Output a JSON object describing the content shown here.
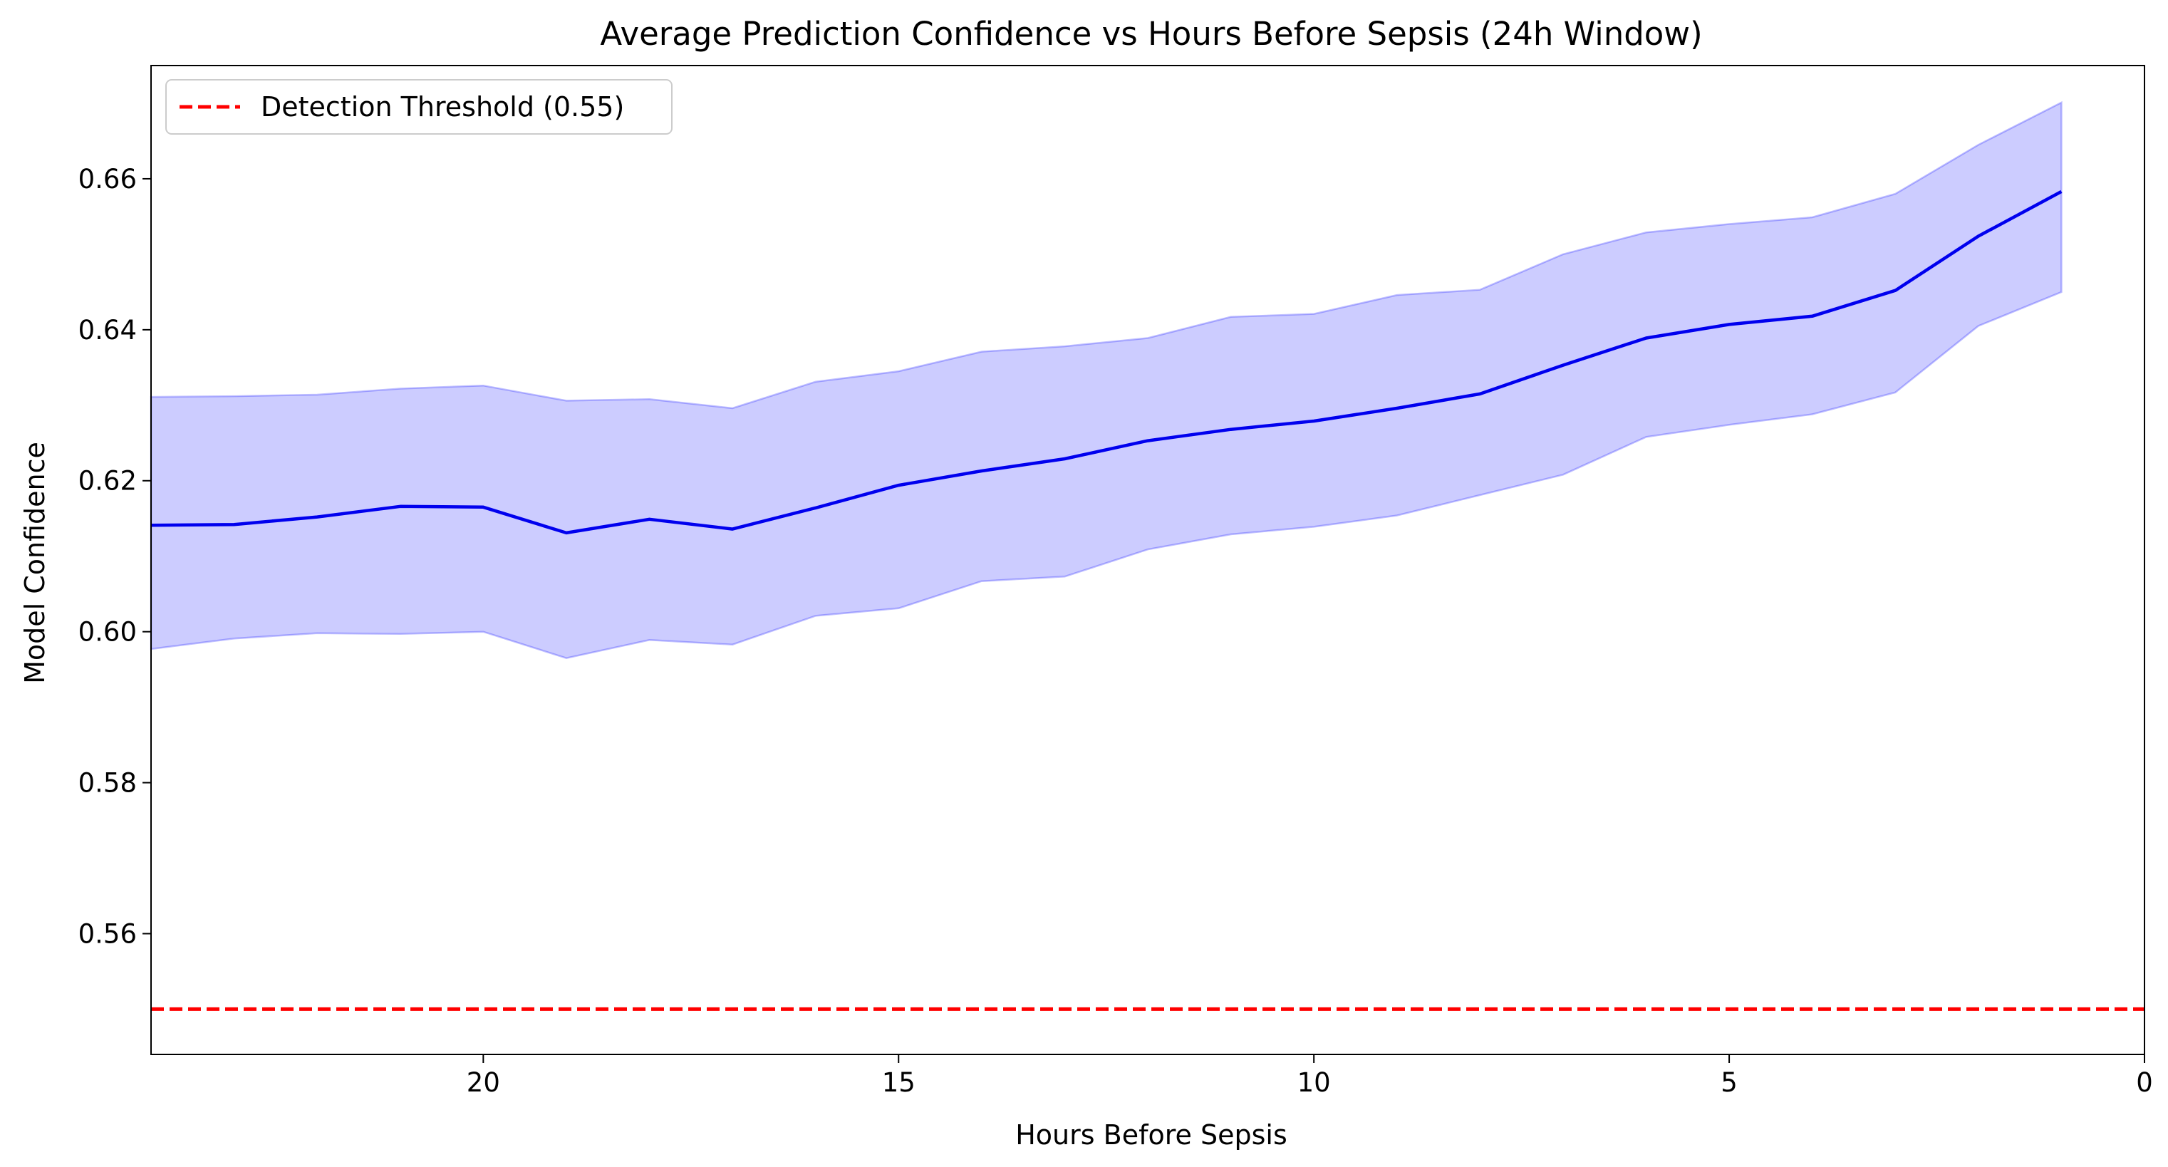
{
  "chart_data": {
    "type": "line",
    "title": "Average Prediction Confidence vs Hours Before Sepsis (24h Window)",
    "xlabel": "Hours Before Sepsis",
    "ylabel": "Model Confidence",
    "xlim": [
      24,
      0
    ],
    "ylim": [
      0.544,
      0.675
    ],
    "x_ticks": [
      20,
      15,
      10,
      5,
      0
    ],
    "y_ticks": [
      0.56,
      0.58,
      0.6,
      0.62,
      0.64,
      0.66
    ],
    "x_tick_labels": [
      "20",
      "15",
      "10",
      "5",
      "0"
    ],
    "y_tick_labels": [
      "0.56",
      "0.58",
      "0.60",
      "0.62",
      "0.64",
      "0.66"
    ],
    "x": [
      24,
      23,
      22,
      21,
      20,
      19,
      18,
      17,
      16,
      15,
      14,
      13,
      12,
      11,
      10,
      9,
      8,
      7,
      6,
      5,
      4,
      3,
      2,
      1
    ],
    "series": [
      {
        "kind": "mean-line",
        "color": "#0000ee",
        "values": [
          0.6141,
          0.6142,
          0.6152,
          0.6166,
          0.6165,
          0.6131,
          0.6149,
          0.6136,
          0.6164,
          0.6194,
          0.6213,
          0.6229,
          0.6253,
          0.6268,
          0.6279,
          0.6296,
          0.6315,
          0.6353,
          0.6389,
          0.6407,
          0.6418,
          0.6452,
          0.6524,
          0.6583
        ]
      },
      {
        "kind": "confidence-band",
        "color": "#0000ff",
        "fill_opacity": 0.2,
        "upper": [
          0.6311,
          0.6312,
          0.6314,
          0.6322,
          0.6326,
          0.6306,
          0.6308,
          0.6296,
          0.6331,
          0.6345,
          0.6371,
          0.6378,
          0.6389,
          0.6417,
          0.6421,
          0.6446,
          0.6453,
          0.65,
          0.6529,
          0.654,
          0.6549,
          0.658,
          0.6645,
          0.6701
        ],
        "lower": [
          0.5977,
          0.5991,
          0.5998,
          0.5997,
          0.6,
          0.5965,
          0.5989,
          0.5983,
          0.6021,
          0.6031,
          0.6067,
          0.6073,
          0.6109,
          0.6129,
          0.6139,
          0.6154,
          0.6181,
          0.6208,
          0.6258,
          0.6274,
          0.6288,
          0.6317,
          0.6405,
          0.645
        ]
      }
    ],
    "threshold": {
      "name": "Detection Threshold (0.55)",
      "value": 0.55,
      "color": "#ff0000",
      "style": "dashed"
    },
    "legend": {
      "placement": "top-left",
      "entries": [
        "Detection Threshold (0.55)"
      ]
    },
    "grid": false
  }
}
